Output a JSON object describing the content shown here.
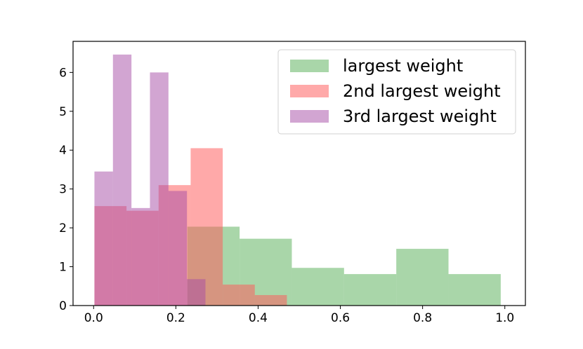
{
  "chart_data": {
    "type": "histogram",
    "title": "",
    "xlabel": "",
    "ylabel": "",
    "xlim": [
      -0.05,
      1.05
    ],
    "ylim": [
      0,
      6.8
    ],
    "xticks": [
      0.0,
      0.2,
      0.4,
      0.6,
      0.8,
      1.0
    ],
    "xtick_labels": [
      "0.0",
      "0.2",
      "0.4",
      "0.6",
      "0.8",
      "1.0"
    ],
    "yticks": [
      0,
      1,
      2,
      3,
      4,
      5,
      6
    ],
    "ytick_labels": [
      "0",
      "1",
      "2",
      "3",
      "4",
      "5",
      "6"
    ],
    "grid": false,
    "legend_position": "top-right",
    "series": [
      {
        "name": "largest weight",
        "color": "#63b563",
        "opacity": 0.55,
        "bins": [
          {
            "x0": 0.228,
            "x1": 0.355,
            "y": 2.03
          },
          {
            "x0": 0.355,
            "x1": 0.482,
            "y": 1.72
          },
          {
            "x0": 0.482,
            "x1": 0.609,
            "y": 0.97
          },
          {
            "x0": 0.609,
            "x1": 0.736,
            "y": 0.81
          },
          {
            "x0": 0.736,
            "x1": 0.863,
            "y": 1.46
          },
          {
            "x0": 0.863,
            "x1": 0.99,
            "y": 0.81
          }
        ]
      },
      {
        "name": "2nd largest weight",
        "color": "#ff5a5a",
        "opacity": 0.52,
        "bins": [
          {
            "x0": 0.002,
            "x1": 0.08,
            "y": 2.56
          },
          {
            "x0": 0.08,
            "x1": 0.158,
            "y": 2.44
          },
          {
            "x0": 0.158,
            "x1": 0.236,
            "y": 3.1
          },
          {
            "x0": 0.236,
            "x1": 0.314,
            "y": 4.05
          },
          {
            "x0": 0.314,
            "x1": 0.392,
            "y": 0.54
          },
          {
            "x0": 0.392,
            "x1": 0.47,
            "y": 0.27
          }
        ]
      },
      {
        "name": "3rd largest weight",
        "color": "#a64ca6",
        "opacity": 0.5,
        "bins": [
          {
            "x0": 0.002,
            "x1": 0.047,
            "y": 3.45
          },
          {
            "x0": 0.047,
            "x1": 0.092,
            "y": 6.46
          },
          {
            "x0": 0.092,
            "x1": 0.137,
            "y": 2.51
          },
          {
            "x0": 0.137,
            "x1": 0.182,
            "y": 6.0
          },
          {
            "x0": 0.182,
            "x1": 0.227,
            "y": 2.95
          },
          {
            "x0": 0.227,
            "x1": 0.272,
            "y": 0.68
          }
        ]
      }
    ]
  }
}
